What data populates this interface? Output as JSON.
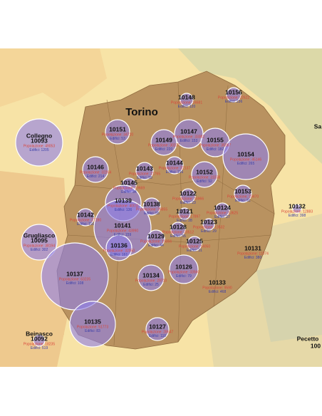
{
  "map": {
    "title": "Torino",
    "places": [
      "Sa",
      "Pecetto",
      "100"
    ],
    "bubbles": [
      {
        "place": "Collegno",
        "code": "10093",
        "population": "Popolazione: 49053",
        "buildings": "Edifici: 1205"
      },
      {
        "code": "10148",
        "population": "Popolazione: 24681",
        "buildings": "Edifici: 120"
      },
      {
        "code": "10156",
        "population": "Popolazione: 22622",
        "buildings": "Edifici: 236"
      },
      {
        "code": "10151",
        "population": "Popolazione: 34720",
        "buildings": "Edifici: 53"
      },
      {
        "code": "10147",
        "population": "Popolazione: 33382",
        "buildings": "Edifici: 153"
      },
      {
        "code": "10149",
        "population": "Popolazione: 30237",
        "buildings": "Edifici: 220"
      },
      {
        "code": "10155",
        "population": "Popolazione: 35087",
        "buildings": "Edifici: 182"
      },
      {
        "code": "10154",
        "population": "Popolazione: 45146",
        "buildings": "Edifici: 265"
      },
      {
        "code": "10146",
        "population": "Popolazione: 32264",
        "buildings": "Edifici: 214"
      },
      {
        "code": "10143",
        "population": "Popolazione: 21765",
        "buildings": "Edifici: 99"
      },
      {
        "code": "10144",
        "population": "Popolazione: 22137",
        "buildings": "Edifici: 156"
      },
      {
        "code": "10152",
        "population": "Popolazione: 31038",
        "buildings": "Edifici: 92"
      },
      {
        "code": "10145",
        "population": "Popolazione: 19669",
        "buildings": "Edifici: 84"
      },
      {
        "code": "10122",
        "population": "Popolazione: 16966",
        "buildings": "Edifici: 23"
      },
      {
        "code": "10153",
        "population": "Popolazione: 23470",
        "buildings": "Edifici: 91"
      },
      {
        "code": "10139",
        "population": "Popolazione: 40011",
        "buildings": "Edifici: 136"
      },
      {
        "code": "10138",
        "population": "Popolazione: 26855",
        "buildings": "Edifici: 55"
      },
      {
        "code": "10142",
        "population": "Popolazione: 27280",
        "buildings": "Edifici: 116"
      },
      {
        "code": "10121",
        "population": "Popolazione: 17897",
        "buildings": "Edifici: 28"
      },
      {
        "code": "10124",
        "population": "Popolazione: 13625",
        "buildings": "Edifici: 27"
      },
      {
        "code": "10132",
        "population": "Popolazione: 12883",
        "buildings": "Edifici: 398"
      },
      {
        "code": "10141",
        "population": "Popolazione: 43990",
        "buildings": "Edifici: 159"
      },
      {
        "code": "10123",
        "population": "Popolazione: 13532",
        "buildings": "Edifici: 29"
      },
      {
        "code": "10128",
        "population": "Popolazione: 20512",
        "buildings": "Edifici: 55"
      },
      {
        "place": "Grugliasco",
        "code": "10095",
        "population": "Popolazione: 38194",
        "buildings": "Edifici: 302"
      },
      {
        "code": "10129",
        "population": "Popolazione: 19356",
        "buildings": "Edifici: 44"
      },
      {
        "code": "10136",
        "population": "Popolazione: 32050",
        "buildings": "Edifici: 161"
      },
      {
        "code": "10125",
        "population": "Popolazione: 14050",
        "buildings": "Edifici: 31"
      },
      {
        "code": "10131",
        "population": "Popolazione: 11074",
        "buildings": "Edifici: 380"
      },
      {
        "code": "10137",
        "population": "Popolazione: 63235",
        "buildings": "Edifici: 108"
      },
      {
        "code": "10126",
        "population": "Popolazione: 33560",
        "buildings": "Edifici: 79"
      },
      {
        "code": "10134",
        "population": "Popolazione: 29710",
        "buildings": "Edifici: 25"
      },
      {
        "code": "10133",
        "population": "Popolazione: 9590",
        "buildings": "Edifici: 468"
      },
      {
        "code": "10135",
        "population": "Popolazione: 51773",
        "buildings": "Edifici: 83"
      },
      {
        "code": "10127",
        "population": "Popolazione: 28647",
        "buildings": "Edifici: 110"
      },
      {
        "place": "Beinasco",
        "code": "10092",
        "population": "Popolazione: 18235",
        "buildings": "Edifici: 519"
      }
    ]
  }
}
